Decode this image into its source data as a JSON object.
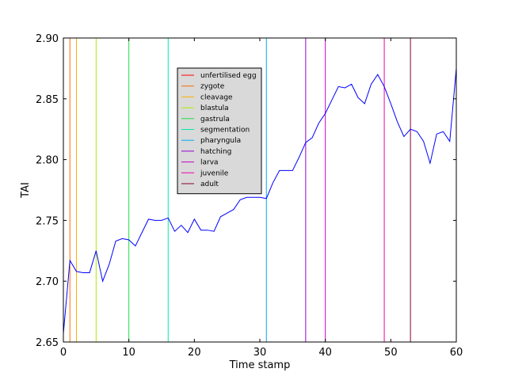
{
  "chart_data": {
    "type": "line",
    "xlabel": "Time stamp",
    "ylabel": "TAI",
    "xlim": [
      0,
      60
    ],
    "ylim": [
      2.65,
      2.9
    ],
    "x_ticks": [
      "0",
      "10",
      "20",
      "30",
      "40",
      "50",
      "60"
    ],
    "y_ticks": [
      "2.65",
      "2.70",
      "2.75",
      "2.80",
      "2.85",
      "2.90"
    ],
    "grid": false,
    "legend_position": "upper-center",
    "series": [
      {
        "color": "#0000ff",
        "x": [
          0,
          1,
          2,
          3,
          4,
          5,
          6,
          7,
          8,
          9,
          10,
          11,
          12,
          13,
          14,
          15,
          16,
          17,
          18,
          19,
          20,
          21,
          22,
          23,
          24,
          25,
          26,
          27,
          28,
          29,
          30,
          31,
          32,
          33,
          34,
          35,
          36,
          37,
          38,
          39,
          40,
          41,
          42,
          43,
          44,
          45,
          46,
          47,
          48,
          49,
          50,
          51,
          52,
          53,
          54,
          55,
          56,
          57,
          58,
          59,
          60
        ],
        "y": [
          2.657,
          2.717,
          2.708,
          2.707,
          2.707,
          2.725,
          2.7,
          2.714,
          2.733,
          2.735,
          2.734,
          2.729,
          2.74,
          2.751,
          2.75,
          2.75,
          2.752,
          2.741,
          2.746,
          2.74,
          2.751,
          2.742,
          2.742,
          2.741,
          2.753,
          2.756,
          2.759,
          2.767,
          2.769,
          2.769,
          2.769,
          2.768,
          2.781,
          2.791,
          2.791,
          2.791,
          2.802,
          2.814,
          2.818,
          2.83,
          2.838,
          2.849,
          2.86,
          2.859,
          2.862,
          2.851,
          2.846,
          2.862,
          2.87,
          2.86,
          2.846,
          2.831,
          2.819,
          2.825,
          2.823,
          2.815,
          2.797,
          2.821,
          2.823,
          2.815,
          2.875
        ]
      }
    ],
    "stage_lines": [
      {
        "name": "unfertilised egg",
        "x": 0,
        "color": "#ff0000"
      },
      {
        "name": "zygote",
        "x": 1,
        "color": "#ff6a00"
      },
      {
        "name": "cleavage",
        "x": 2,
        "color": "#ffb000"
      },
      {
        "name": "blastula",
        "x": 5,
        "color": "#aaee00"
      },
      {
        "name": "gastrula",
        "x": 10,
        "color": "#22dd44"
      },
      {
        "name": "segmentation",
        "x": 16,
        "color": "#00e8a8"
      },
      {
        "name": "pharyngula",
        "x": 31,
        "color": "#00aaee"
      },
      {
        "name": "hatching",
        "x": 37,
        "color": "#9900cc"
      },
      {
        "name": "larva",
        "x": 40,
        "color": "#cc00cc"
      },
      {
        "name": "juvenile",
        "x": 49,
        "color": "#ee00aa"
      },
      {
        "name": "adult",
        "x": 53,
        "color": "#880033"
      }
    ]
  }
}
